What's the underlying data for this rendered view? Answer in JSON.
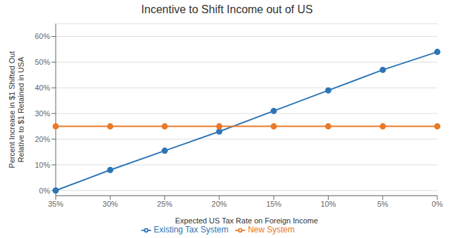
{
  "chart_data": {
    "type": "line",
    "title": "Incentive to Shift Income out of US",
    "x_label": "Expected US Tax Rate on Foreign Income",
    "y_label": "Percent Increase in $1 Shifted Out\nRelative to $1 Retained in USA",
    "categories": [
      "35%",
      "30%",
      "25%",
      "20%",
      "15%",
      "10%",
      "5%",
      "0%"
    ],
    "series": [
      {
        "name": "Existing Tax System",
        "color": "#2E75B6",
        "marker": "circle",
        "values": [
          0.0,
          0.08,
          0.155,
          0.23,
          0.31,
          0.39,
          0.47,
          0.54
        ]
      },
      {
        "name": "New System",
        "color": "#E97A28",
        "marker": "circle",
        "values": [
          0.25,
          0.25,
          0.25,
          0.25,
          0.25,
          0.25,
          0.25,
          0.25
        ]
      }
    ],
    "ylim": [
      -0.02,
      0.65
    ],
    "yticks": [
      {
        "value": 0.0,
        "label": "0%"
      },
      {
        "value": 0.1,
        "label": "10%"
      },
      {
        "value": 0.2,
        "label": "20%"
      },
      {
        "value": 0.3,
        "label": "30%"
      },
      {
        "value": 0.4,
        "label": "40%"
      },
      {
        "value": 0.5,
        "label": "50%"
      },
      {
        "value": 0.6,
        "label": "60%"
      }
    ],
    "grid": true,
    "legend": "bottom"
  }
}
